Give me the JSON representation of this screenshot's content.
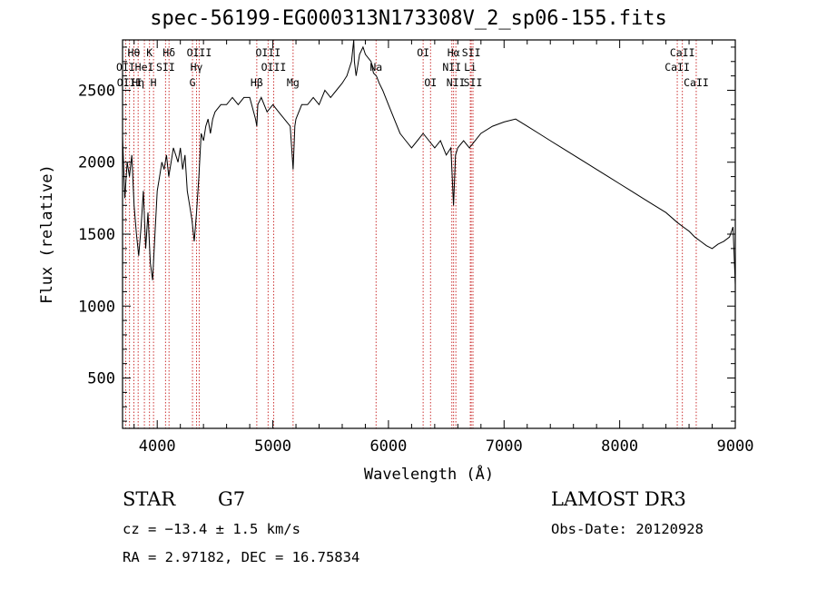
{
  "chart_data": {
    "type": "line",
    "title": "spec-56199-EG000313N173308V_2_sp06-155.fits",
    "xlabel": "Wavelength (Å)",
    "ylabel": "Flux (relative)",
    "xlim": [
      3700,
      9000
    ],
    "ylim": [
      150,
      2850
    ],
    "xticks": [
      4000,
      5000,
      6000,
      7000,
      8000,
      9000
    ],
    "yticks": [
      500,
      1000,
      1500,
      2000,
      2500
    ],
    "grid": false,
    "series": [
      {
        "name": "flux",
        "x": [
          3700,
          3720,
          3740,
          3760,
          3780,
          3800,
          3820,
          3840,
          3860,
          3880,
          3900,
          3920,
          3940,
          3960,
          3980,
          4000,
          4020,
          4040,
          4060,
          4080,
          4100,
          4120,
          4140,
          4160,
          4180,
          4200,
          4220,
          4240,
          4260,
          4280,
          4300,
          4320,
          4340,
          4360,
          4380,
          4400,
          4420,
          4440,
          4460,
          4480,
          4500,
          4550,
          4600,
          4650,
          4700,
          4750,
          4800,
          4850,
          4861,
          4870,
          4900,
          4950,
          5000,
          5050,
          5100,
          5150,
          5175,
          5190,
          5200,
          5250,
          5300,
          5350,
          5400,
          5450,
          5500,
          5550,
          5600,
          5640,
          5680,
          5700,
          5705,
          5720,
          5750,
          5780,
          5800,
          5850,
          5870,
          5895,
          5920,
          5950,
          6000,
          6050,
          6100,
          6150,
          6200,
          6250,
          6300,
          6350,
          6400,
          6450,
          6500,
          6540,
          6563,
          6580,
          6600,
          6650,
          6700,
          6800,
          6900,
          7000,
          7100,
          7200,
          7300,
          7400,
          7500,
          7600,
          7700,
          7800,
          7900,
          8000,
          8100,
          8200,
          8300,
          8400,
          8500,
          8550,
          8600,
          8650,
          8700,
          8750,
          8800,
          8850,
          8900,
          8950,
          8980,
          9000
        ],
        "y": [
          2180,
          1750,
          2000,
          1900,
          2050,
          1700,
          1500,
          1350,
          1550,
          1800,
          1400,
          1650,
          1300,
          1180,
          1500,
          1800,
          1900,
          2000,
          1950,
          2050,
          1900,
          2000,
          2100,
          2050,
          2000,
          2100,
          1950,
          2050,
          1800,
          1700,
          1600,
          1450,
          1650,
          1900,
          2200,
          2150,
          2250,
          2300,
          2200,
          2300,
          2350,
          2400,
          2400,
          2450,
          2400,
          2450,
          2450,
          2300,
          2250,
          2400,
          2450,
          2350,
          2400,
          2350,
          2300,
          2250,
          1950,
          2250,
          2300,
          2400,
          2400,
          2450,
          2400,
          2500,
          2450,
          2500,
          2550,
          2600,
          2700,
          2850,
          2700,
          2600,
          2750,
          2800,
          2750,
          2700,
          2620,
          2600,
          2550,
          2500,
          2400,
          2300,
          2200,
          2150,
          2100,
          2150,
          2200,
          2150,
          2100,
          2150,
          2050,
          2100,
          1700,
          2050,
          2100,
          2150,
          2100,
          2200,
          2250,
          2280,
          2300,
          2250,
          2200,
          2150,
          2100,
          2050,
          2000,
          1950,
          1900,
          1850,
          1800,
          1750,
          1700,
          1650,
          1580,
          1550,
          1520,
          1480,
          1450,
          1420,
          1400,
          1430,
          1450,
          1480,
          1550,
          1150
        ]
      }
    ],
    "lines": [
      {
        "label": "Hθ",
        "wave": 3798,
        "row": 1
      },
      {
        "label": "OII",
        "wave": 3727,
        "row": 2
      },
      {
        "label": "OIII",
        "wave": 3760,
        "row": 3
      },
      {
        "label": "Hη",
        "wave": 3835,
        "row": 3
      },
      {
        "label": "HeI",
        "wave": 3889,
        "row": 2
      },
      {
        "label": "K",
        "wave": 3933,
        "row": 1
      },
      {
        "label": "H",
        "wave": 3968,
        "row": 3
      },
      {
        "label": "SII",
        "wave": 4072,
        "row": 2
      },
      {
        "label": "Hδ",
        "wave": 4102,
        "row": 1
      },
      {
        "label": "OIII",
        "wave": 4363,
        "row": 1
      },
      {
        "label": "Hγ",
        "wave": 4340,
        "row": 2
      },
      {
        "label": "G",
        "wave": 4305,
        "row": 3
      },
      {
        "label": "Hβ",
        "wave": 4861,
        "row": 3
      },
      {
        "label": "OIII",
        "wave": 4959,
        "row": 1
      },
      {
        "label": "OIII",
        "wave": 5007,
        "row": 2
      },
      {
        "label": "Mg",
        "wave": 5175,
        "row": 3
      },
      {
        "label": "Na",
        "wave": 5893,
        "row": 2
      },
      {
        "label": "OI",
        "wave": 6300,
        "row": 1
      },
      {
        "label": "OI",
        "wave": 6364,
        "row": 3
      },
      {
        "label": "Hα",
        "wave": 6563,
        "row": 1
      },
      {
        "label": "NII",
        "wave": 6548,
        "row": 2
      },
      {
        "label": "NII",
        "wave": 6583,
        "row": 3
      },
      {
        "label": "SII",
        "wave": 6716,
        "row": 1
      },
      {
        "label": "Li",
        "wave": 6708,
        "row": 2
      },
      {
        "label": "SII",
        "wave": 6731,
        "row": 3
      },
      {
        "label": "CaII",
        "wave": 8542,
        "row": 1
      },
      {
        "label": "CaII",
        "wave": 8498,
        "row": 2
      },
      {
        "label": "CaII",
        "wave": 8662,
        "row": 3
      }
    ]
  },
  "object": {
    "class": "STAR",
    "subclass": "G7",
    "survey": "LAMOST DR3",
    "cz": "cz = −13.4 ± 1.5 km/s",
    "obs_date": "Obs-Date: 20120928",
    "coords": "RA =   2.97182, DEC =  16.75834"
  },
  "colors": {
    "line_marker": "#cc3333",
    "spectrum": "#000000"
  }
}
